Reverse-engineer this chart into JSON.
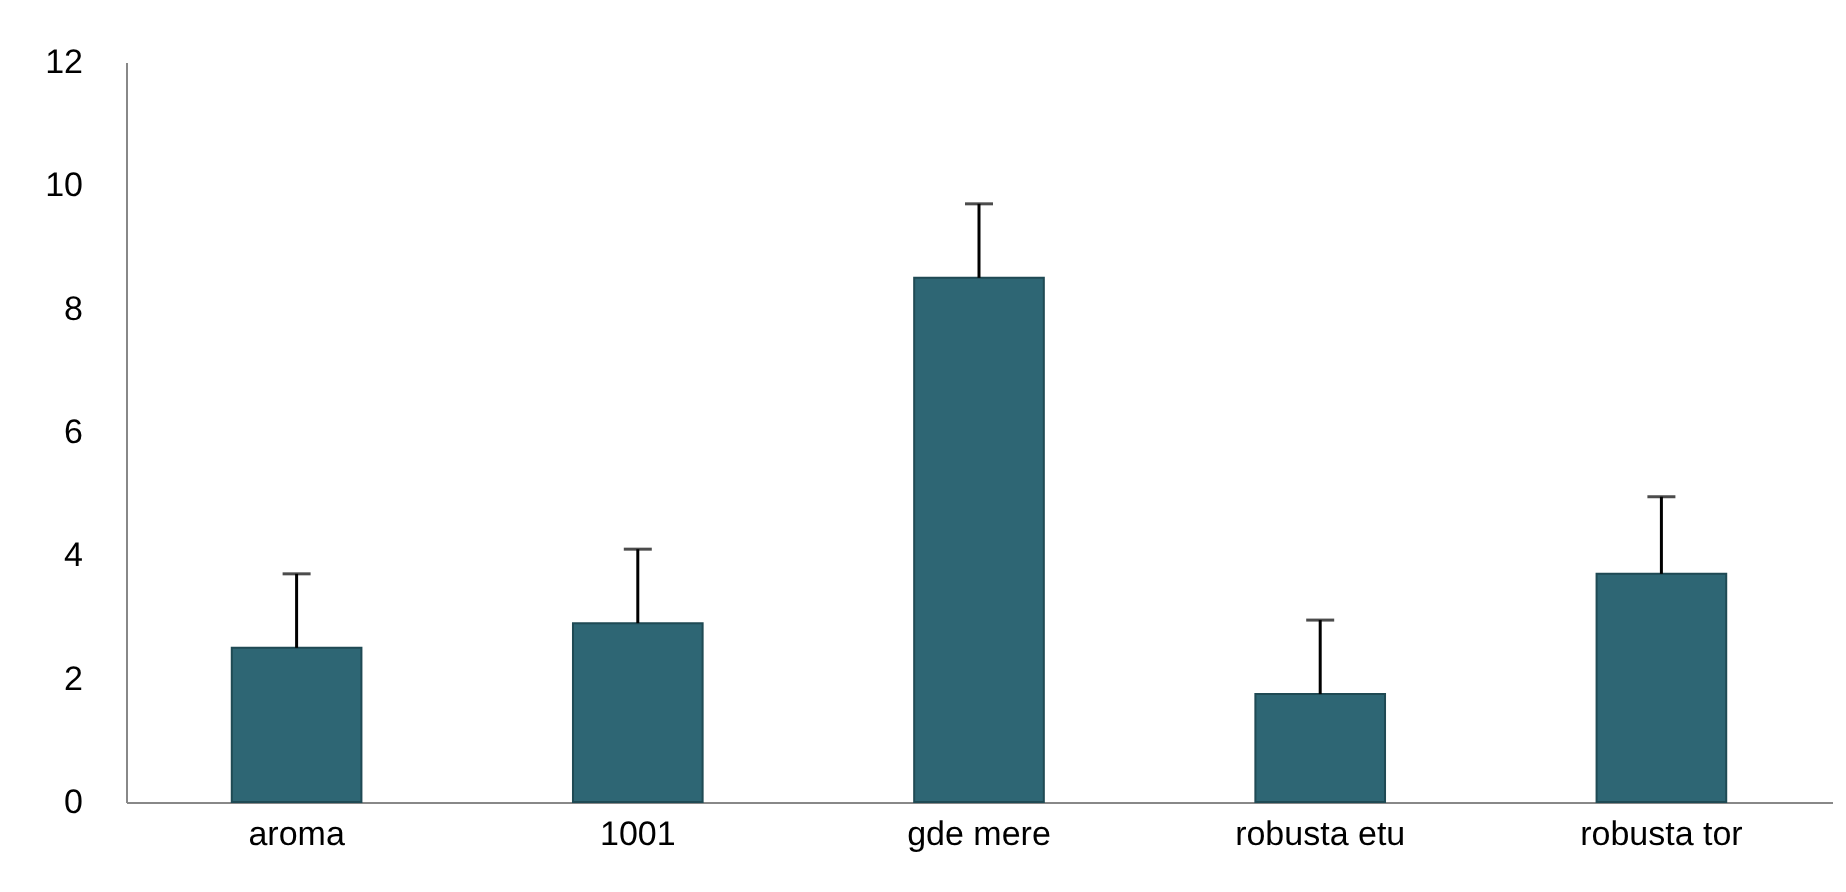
{
  "chart_data": {
    "type": "bar",
    "categories": [
      "aroma",
      "1001",
      "gde mere",
      "robusta etu",
      "robusta tor"
    ],
    "values": [
      2.5,
      2.9,
      8.5,
      1.75,
      3.7
    ],
    "errors": [
      [
        2.5,
        3.7
      ],
      [
        2.9,
        4.1
      ],
      [
        8.5,
        9.7
      ],
      [
        1.75,
        2.95
      ],
      [
        3.7,
        4.95
      ]
    ],
    "color": "#2e6674",
    "ylim": [
      0,
      12
    ],
    "yticks": [
      0,
      2,
      4,
      6,
      8,
      10,
      12
    ],
    "grid": false
  }
}
